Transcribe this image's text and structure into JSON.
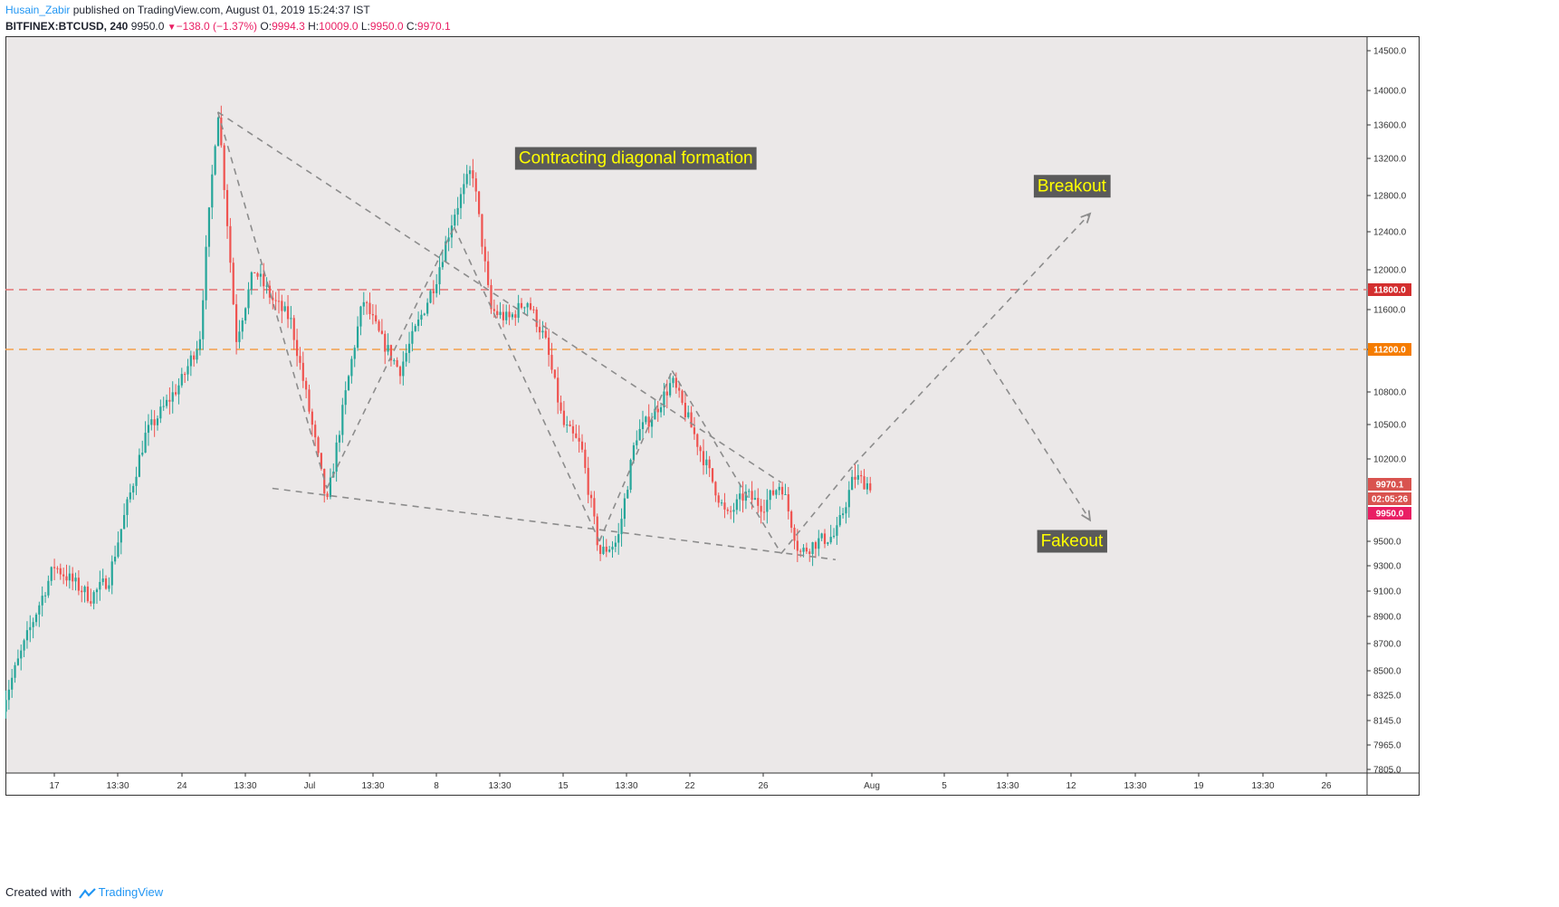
{
  "header": {
    "author": "Husain_Zabir",
    "published": "published on TradingView.com, August 01, 2019 15:24:37 IST",
    "symbol": "BITFINEX:BTCUSD, 240",
    "last": "9950.0",
    "change": "−138.0 (−1.37%)",
    "o_label": "O:",
    "o_value": "9994.3",
    "h_label": "H:",
    "h_value": "10009.0",
    "l_label": "L:",
    "l_value": "9950.0",
    "c_label": "C:",
    "c_value": "9970.1"
  },
  "footer": {
    "created_with": "Created with",
    "brand": "TradingView"
  },
  "colors": {
    "background": "#ebe8e8",
    "up": "#26a69a",
    "down": "#ef5350",
    "guide": "#8c8c8c",
    "level_red": "#e57373",
    "level_orange": "#f5a04a",
    "annotation_bg": "#5a5a5a",
    "annotation_text": "#ffff00"
  },
  "chart_data": {
    "type": "candlestick",
    "title": "",
    "x_tick_labels": [
      "17",
      "13:30",
      "24",
      "13:30",
      "Jul",
      "13:30",
      "8",
      "13:30",
      "15",
      "13:30",
      "22",
      "26",
      "Aug",
      "5",
      "13:30",
      "12",
      "13:30",
      "19",
      "13:30",
      "26"
    ],
    "y_tick_labels": [
      "14500.0",
      "14000.0",
      "13600.0",
      "13200.0",
      "12800.0",
      "12400.0",
      "12000.0",
      "11600.0",
      "11200.0",
      "10800.0",
      "10500.0",
      "10200.0",
      "9500.0",
      "9300.0",
      "9100.0",
      "8900.0",
      "8700.0",
      "8500.0",
      "8325.0",
      "8145.0",
      "7965.0",
      "7805.0"
    ],
    "y_range": [
      7805,
      14700
    ],
    "price_path": [
      {
        "date": "2019-06-14",
        "price": 8200
      },
      {
        "date": "2019-06-17",
        "price": 9300
      },
      {
        "date": "2019-06-19",
        "price": 9050
      },
      {
        "date": "2019-06-20",
        "price": 9200
      },
      {
        "date": "2019-06-22",
        "price": 10400
      },
      {
        "date": "2019-06-24",
        "price": 10900
      },
      {
        "date": "2019-06-25",
        "price": 11300
      },
      {
        "date": "2019-06-26",
        "price": 13800
      },
      {
        "date": "2019-06-27",
        "price": 11300
      },
      {
        "date": "2019-06-28",
        "price": 12000
      },
      {
        "date": "2019-06-29",
        "price": 11700
      },
      {
        "date": "2019-06-30",
        "price": 11500
      },
      {
        "date": "2019-07-02",
        "price": 9800
      },
      {
        "date": "2019-07-04",
        "price": 11700
      },
      {
        "date": "2019-07-05",
        "price": 11300
      },
      {
        "date": "2019-07-06",
        "price": 11000
      },
      {
        "date": "2019-07-08",
        "price": 11900
      },
      {
        "date": "2019-07-09",
        "price": 12600
      },
      {
        "date": "2019-07-10",
        "price": 13100
      },
      {
        "date": "2019-07-11",
        "price": 11600
      },
      {
        "date": "2019-07-12",
        "price": 11500
      },
      {
        "date": "2019-07-13",
        "price": 11700
      },
      {
        "date": "2019-07-14",
        "price": 11300
      },
      {
        "date": "2019-07-15",
        "price": 10500
      },
      {
        "date": "2019-07-16",
        "price": 10300
      },
      {
        "date": "2019-07-17",
        "price": 9400
      },
      {
        "date": "2019-07-18",
        "price": 9500
      },
      {
        "date": "2019-07-19",
        "price": 10400
      },
      {
        "date": "2019-07-20",
        "price": 10600
      },
      {
        "date": "2019-07-21",
        "price": 10900
      },
      {
        "date": "2019-07-22",
        "price": 10500
      },
      {
        "date": "2019-07-23",
        "price": 10100
      },
      {
        "date": "2019-07-24",
        "price": 9700
      },
      {
        "date": "2019-07-25",
        "price": 9900
      },
      {
        "date": "2019-07-26",
        "price": 9800
      },
      {
        "date": "2019-07-27",
        "price": 10000
      },
      {
        "date": "2019-07-28",
        "price": 9400
      },
      {
        "date": "2019-07-29",
        "price": 9500
      },
      {
        "date": "2019-07-30",
        "price": 9550
      },
      {
        "date": "2019-07-31",
        "price": 10050
      },
      {
        "date": "2019-08-01",
        "price": 9970
      }
    ],
    "horizontal_levels": [
      {
        "price": 11800,
        "label": "11800.0",
        "color": "#e57373"
      },
      {
        "price": 11200,
        "label": "11200.0",
        "color": "#f5a04a"
      }
    ],
    "price_tags": [
      {
        "price": 9970.1,
        "label": "9970.1",
        "color": "#d9534f"
      },
      {
        "price": 9970.1,
        "label": "02:05:26",
        "color": "#d9534f"
      },
      {
        "price": 9950.0,
        "label": "9950.0",
        "color": "#e91e63"
      }
    ],
    "guide_lines": [
      {
        "from": {
          "date": "2019-06-26",
          "price": 13750
        },
        "to": {
          "date": "2019-07-27",
          "price": 10000
        }
      },
      {
        "from": {
          "date": "2019-06-29",
          "price": 9950
        },
        "to": {
          "date": "2019-07-30",
          "price": 9350
        }
      },
      {
        "from": {
          "date": "2019-06-26",
          "price": 13750
        },
        "to": {
          "date": "2019-07-02",
          "price": 9950
        }
      },
      {
        "from": {
          "date": "2019-07-02",
          "price": 9950
        },
        "to": {
          "date": "2019-07-09",
          "price": 12450
        }
      },
      {
        "from": {
          "date": "2019-07-09",
          "price": 12450
        },
        "to": {
          "date": "2019-07-17",
          "price": 9500
        }
      },
      {
        "from": {
          "date": "2019-07-17",
          "price": 9500
        },
        "to": {
          "date": "2019-07-21",
          "price": 11000
        }
      },
      {
        "from": {
          "date": "2019-07-21",
          "price": 11000
        },
        "to": {
          "date": "2019-07-27",
          "price": 9400
        }
      },
      {
        "from": {
          "date": "2019-07-27",
          "price": 9400
        },
        "to": {
          "date": "2019-07-31",
          "price": 10150
        }
      }
    ],
    "arrows": [
      {
        "from": {
          "date": "2019-07-31",
          "price": 10150
        },
        "to": {
          "date": "2019-08-13",
          "price": 12600
        },
        "label": "Breakout"
      },
      {
        "from": {
          "date": "2019-08-07",
          "price": 11200
        },
        "to": {
          "date": "2019-08-13",
          "price": 9680
        },
        "label": "Fakeout"
      }
    ],
    "annotations": [
      {
        "text": "Contracting diagonal formation",
        "date": "2019-07-19",
        "price": 13200
      },
      {
        "text": "Breakout",
        "date": "2019-08-12",
        "price": 12900
      },
      {
        "text": "Fakeout",
        "date": "2019-08-12",
        "price": 9500
      }
    ]
  }
}
